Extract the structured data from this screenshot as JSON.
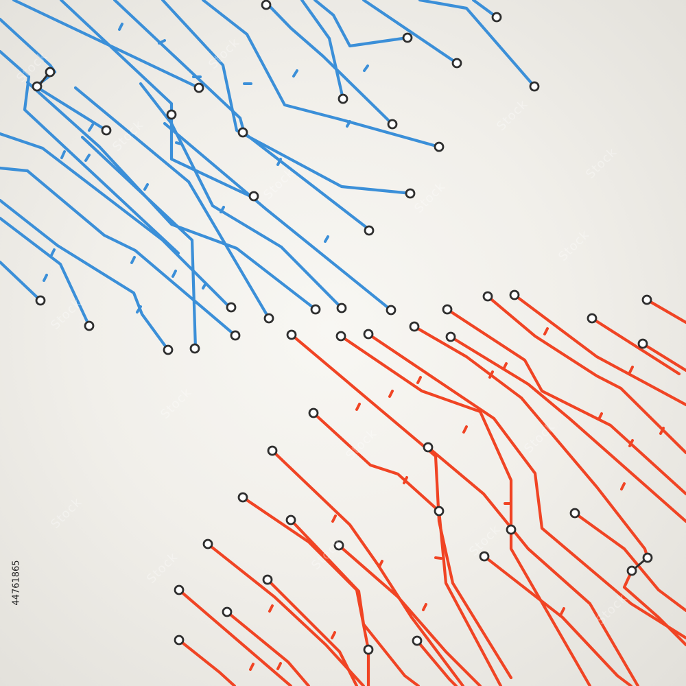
{
  "image": {
    "subject": "microcircuit-pattern",
    "id_text": "44761865"
  },
  "watermark": {
    "text": "Stock"
  },
  "palette": {
    "background": "#f1efea",
    "blue_trace": "#3b8fd8",
    "red_trace": "#f04424",
    "pad_stroke": "#2e2e2e",
    "pad_fill": "#ffffff"
  },
  "icons": {
    "trace_pad": "circle-pad",
    "trace_tick": "short-stub"
  }
}
